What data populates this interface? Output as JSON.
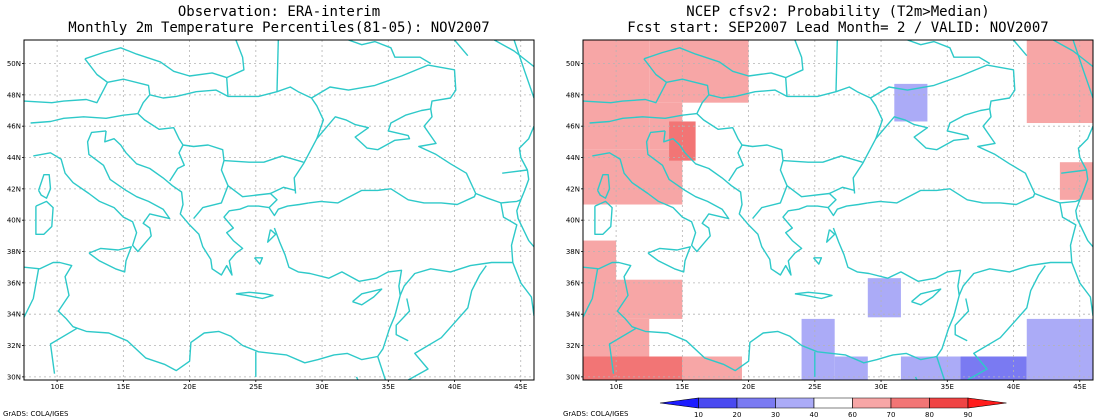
{
  "left_panel": {
    "title_line1": "Observation: ERA-interim",
    "title_line2": "Monthly 2m Temperature Percentiles(81-05): NOV2007"
  },
  "right_panel": {
    "title_line1": "NCEP cfsv2: Probability (T2m>Median)",
    "title_line2": "Fcst start: SEP2007  Lead Month= 2 / VALID: NOV2007"
  },
  "map": {
    "lon_ticks": [
      "10E",
      "15E",
      "20E",
      "25E",
      "30E",
      "35E",
      "40E",
      "45E"
    ],
    "lat_ticks": [
      "50N",
      "48N",
      "46N",
      "44N",
      "42N",
      "40N",
      "38N",
      "36N",
      "34N",
      "32N",
      "30N"
    ],
    "coast_color": "#2ec9c9",
    "grid_color": "#b4b4b4"
  },
  "colorbar": {
    "labels": [
      "10",
      "20",
      "30",
      "40",
      "60",
      "70",
      "80",
      "90"
    ],
    "colors": [
      "#1c1cff",
      "#4a4af0",
      "#7a7af2",
      "#ababf7",
      "#ffffff",
      "#f7a6a6",
      "#f27575",
      "#ef4444",
      "#ff1c1c"
    ]
  },
  "probability_cells": [
    {
      "lon": [
        7.5,
        12.5
      ],
      "lat": [
        44.5,
        51.5
      ],
      "color": "#f7a6a6"
    },
    {
      "lon": [
        12.5,
        20.0
      ],
      "lat": [
        47.5,
        51.5
      ],
      "color": "#f7a6a6"
    },
    {
      "lon": [
        7.5,
        15.0
      ],
      "lat": [
        41.0,
        44.5
      ],
      "color": "#f7a6a6"
    },
    {
      "lon": [
        12.5,
        15.0
      ],
      "lat": [
        44.5,
        47.5
      ],
      "color": "#f7a6a6"
    },
    {
      "lon": [
        14.0,
        16.0
      ],
      "lat": [
        43.8,
        46.3
      ],
      "color": "#f27575"
    },
    {
      "lon": [
        41.0,
        46.0
      ],
      "lat": [
        46.2,
        51.5
      ],
      "color": "#f7a6a6"
    },
    {
      "lon": [
        43.5,
        46.0
      ],
      "lat": [
        41.3,
        43.7
      ],
      "color": "#f7a6a6"
    },
    {
      "lon": [
        31.0,
        33.5
      ],
      "lat": [
        46.3,
        48.7
      ],
      "color": "#ababf7"
    },
    {
      "lon": [
        7.5,
        10.0
      ],
      "lat": [
        31.3,
        38.7
      ],
      "color": "#f7a6a6"
    },
    {
      "lon": [
        10.0,
        15.0
      ],
      "lat": [
        33.7,
        36.2
      ],
      "color": "#f7a6a6"
    },
    {
      "lon": [
        10.0,
        12.5
      ],
      "lat": [
        31.3,
        33.7
      ],
      "color": "#f7a6a6"
    },
    {
      "lon": [
        7.5,
        15.0
      ],
      "lat": [
        29.8,
        31.3
      ],
      "color": "#f27575"
    },
    {
      "lon": [
        15.0,
        19.5
      ],
      "lat": [
        29.8,
        31.3
      ],
      "color": "#f7a6a6"
    },
    {
      "lon": [
        29.0,
        31.5
      ],
      "lat": [
        33.8,
        36.3
      ],
      "color": "#ababf7"
    },
    {
      "lon": [
        24.0,
        26.5
      ],
      "lat": [
        29.8,
        33.7
      ],
      "color": "#ababf7"
    },
    {
      "lon": [
        26.5,
        29.0
      ],
      "lat": [
        29.8,
        31.3
      ],
      "color": "#ababf7"
    },
    {
      "lon": [
        31.5,
        36.0
      ],
      "lat": [
        29.8,
        31.3
      ],
      "color": "#ababf7"
    },
    {
      "lon": [
        36.0,
        41.0
      ],
      "lat": [
        29.8,
        31.3
      ],
      "color": "#7a7af2"
    },
    {
      "lon": [
        41.0,
        46.0
      ],
      "lat": [
        29.8,
        33.7
      ],
      "color": "#ababf7"
    }
  ],
  "footer": {
    "credit": "GrADS: COLA/IGES"
  }
}
